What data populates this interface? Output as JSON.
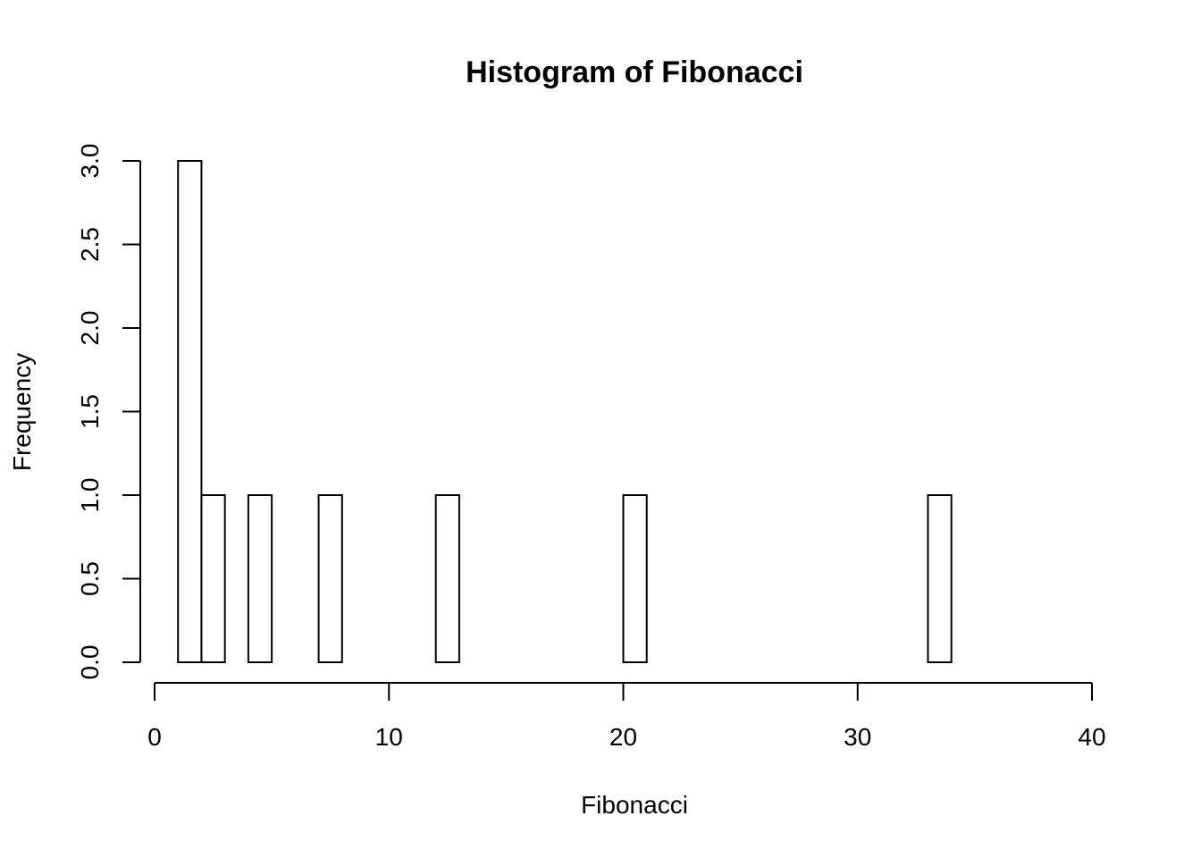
{
  "chart_data": {
    "type": "bar",
    "subtype": "histogram",
    "title": "Histogram of Fibonacci",
    "xlabel": "Fibonacci",
    "ylabel": "Frequency",
    "xlim": [
      0,
      40
    ],
    "ylim": [
      0,
      3
    ],
    "x_ticks": [
      "0",
      "10",
      "20",
      "30",
      "40"
    ],
    "y_ticks": [
      "0.0",
      "0.5",
      "1.0",
      "1.5",
      "2.0",
      "2.5",
      "3.0"
    ],
    "bin_width": 1,
    "bins": [
      {
        "start": 1,
        "end": 2,
        "count": 3
      },
      {
        "start": 2,
        "end": 3,
        "count": 1
      },
      {
        "start": 3,
        "end": 4,
        "count": 0
      },
      {
        "start": 4,
        "end": 5,
        "count": 1
      },
      {
        "start": 5,
        "end": 6,
        "count": 0
      },
      {
        "start": 6,
        "end": 7,
        "count": 0
      },
      {
        "start": 7,
        "end": 8,
        "count": 1
      },
      {
        "start": 8,
        "end": 9,
        "count": 0
      },
      {
        "start": 9,
        "end": 10,
        "count": 0
      },
      {
        "start": 10,
        "end": 11,
        "count": 0
      },
      {
        "start": 11,
        "end": 12,
        "count": 0
      },
      {
        "start": 12,
        "end": 13,
        "count": 1
      },
      {
        "start": 13,
        "end": 14,
        "count": 0
      },
      {
        "start": 14,
        "end": 15,
        "count": 0
      },
      {
        "start": 15,
        "end": 16,
        "count": 0
      },
      {
        "start": 16,
        "end": 17,
        "count": 0
      },
      {
        "start": 17,
        "end": 18,
        "count": 0
      },
      {
        "start": 18,
        "end": 19,
        "count": 0
      },
      {
        "start": 19,
        "end": 20,
        "count": 0
      },
      {
        "start": 20,
        "end": 21,
        "count": 1
      },
      {
        "start": 21,
        "end": 22,
        "count": 0
      },
      {
        "start": 22,
        "end": 23,
        "count": 0
      },
      {
        "start": 23,
        "end": 24,
        "count": 0
      },
      {
        "start": 24,
        "end": 25,
        "count": 0
      },
      {
        "start": 25,
        "end": 26,
        "count": 0
      },
      {
        "start": 26,
        "end": 27,
        "count": 0
      },
      {
        "start": 27,
        "end": 28,
        "count": 0
      },
      {
        "start": 28,
        "end": 29,
        "count": 0
      },
      {
        "start": 29,
        "end": 30,
        "count": 0
      },
      {
        "start": 30,
        "end": 31,
        "count": 0
      },
      {
        "start": 31,
        "end": 32,
        "count": 0
      },
      {
        "start": 32,
        "end": 33,
        "count": 0
      },
      {
        "start": 33,
        "end": 34,
        "count": 1
      },
      {
        "start": 34,
        "end": 35,
        "count": 0
      },
      {
        "start": 35,
        "end": 36,
        "count": 0
      },
      {
        "start": 36,
        "end": 37,
        "count": 0
      },
      {
        "start": 37,
        "end": 38,
        "count": 0
      },
      {
        "start": 38,
        "end": 39,
        "count": 0
      },
      {
        "start": 39,
        "end": 40,
        "count": 0
      }
    ],
    "grid": false,
    "bar_fill": "#ffffff",
    "bar_stroke": "#000000"
  }
}
